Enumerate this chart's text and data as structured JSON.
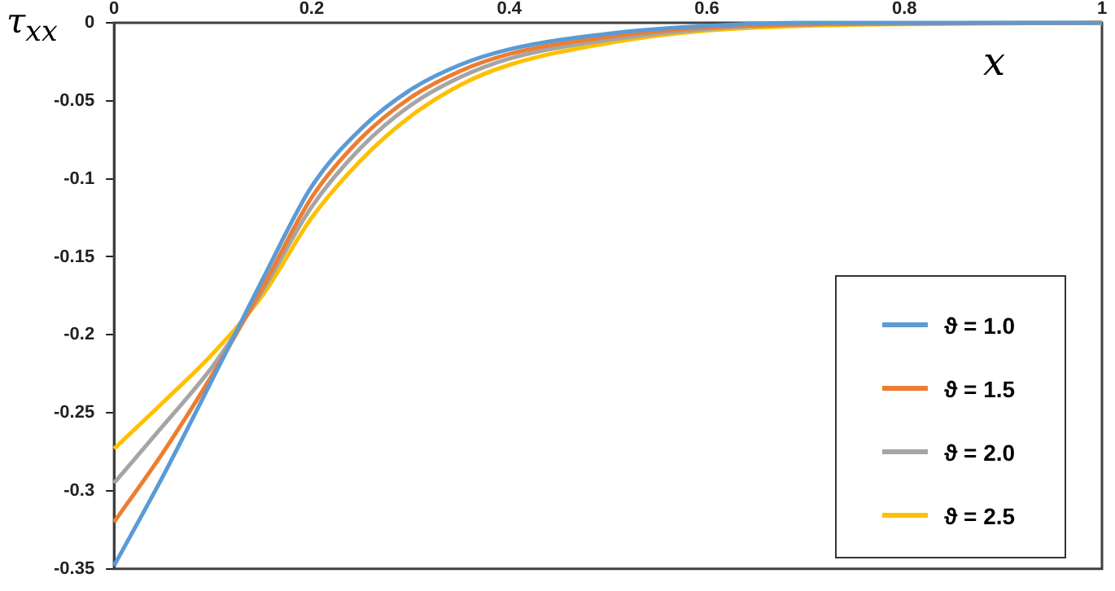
{
  "chart_data": {
    "type": "line",
    "xlabel": "x",
    "ylabel": "τ$_{xx}$",
    "x": [
      0,
      0.05,
      0.1,
      0.15,
      0.2,
      0.25,
      0.3,
      0.35,
      0.4,
      0.5,
      0.6,
      0.7,
      1
    ],
    "series": [
      {
        "name": "ϑ = 1.0",
        "color": "#5b9bd5",
        "values": [
          -0.348,
          -0.29,
          -0.228,
          -0.165,
          -0.105,
          -0.068,
          -0.043,
          -0.027,
          -0.017,
          -0.007,
          -0.002,
          0,
          0
        ]
      },
      {
        "name": "ϑ = 1.5",
        "color": "#ed7d31",
        "values": [
          -0.32,
          -0.275,
          -0.225,
          -0.17,
          -0.112,
          -0.074,
          -0.048,
          -0.031,
          -0.02,
          -0.009,
          -0.003,
          -0.001,
          0
        ]
      },
      {
        "name": "ϑ = 2.0",
        "color": "#a5a5a5",
        "values": [
          -0.295,
          -0.258,
          -0.22,
          -0.172,
          -0.118,
          -0.08,
          -0.053,
          -0.035,
          -0.023,
          -0.011,
          -0.004,
          -0.001,
          0
        ]
      },
      {
        "name": "ϑ = 2.5",
        "color": "#ffc000",
        "values": [
          -0.273,
          -0.243,
          -0.212,
          -0.175,
          -0.125,
          -0.088,
          -0.06,
          -0.04,
          -0.027,
          -0.013,
          -0.005,
          -0.002,
          0
        ]
      }
    ],
    "xlim": [
      0,
      1
    ],
    "xticks": [
      0,
      0.2,
      0.4,
      0.6,
      0.8,
      1
    ],
    "ylim": [
      -0.35,
      0
    ],
    "yticks": [
      -0.35,
      -0.3,
      -0.25,
      -0.2,
      -0.15,
      -0.1,
      -0.05,
      0
    ],
    "legend": "bottom right",
    "marker": "none",
    "line_style": "solid"
  }
}
